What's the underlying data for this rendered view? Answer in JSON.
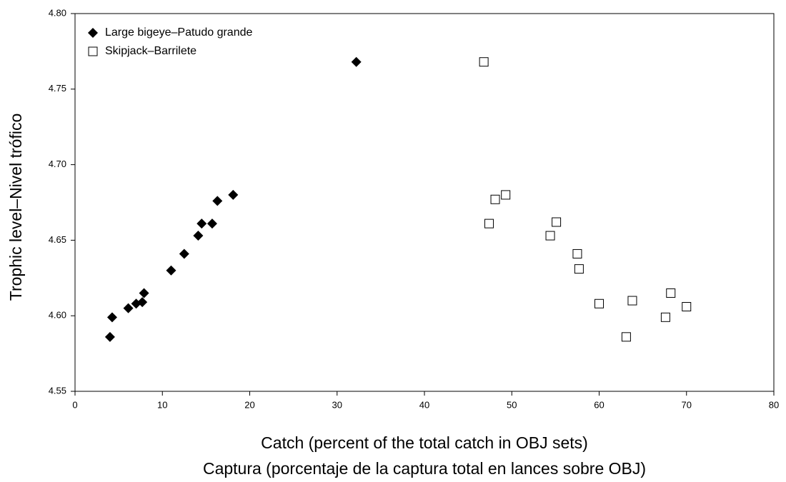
{
  "chart_data": {
    "type": "scatter",
    "x_label": [
      "Catch (percent of the total catch in OBJ sets)",
      "Captura (porcentaje de la captura total en lances sobre OBJ)"
    ],
    "y_label": "Trophic level–Nivel trófico",
    "xlim": [
      0,
      80
    ],
    "xticks": [
      0,
      10,
      20,
      30,
      40,
      50,
      60,
      70,
      80
    ],
    "ylim": [
      4.55,
      4.8
    ],
    "yticks": [
      4.55,
      {
        "value": 4.6,
        "label": "4.60"
      },
      4.65,
      {
        "value": 4.7,
        "label": "4.70"
      },
      4.75,
      {
        "value": 4.8,
        "label": "4.80"
      }
    ],
    "legend_position": "upper-left",
    "series": [
      {
        "name": "Large bigeye–Patudo grande",
        "color": "#000000",
        "marker": "filled-diamond",
        "x": [
          4.0,
          4.25,
          6.1,
          7.0,
          7.7,
          7.9,
          11.0,
          12.5,
          14.1,
          14.5,
          15.7,
          16.3,
          18.1,
          32.2
        ],
        "values": [
          4.586,
          4.599,
          4.605,
          4.608,
          4.609,
          4.615,
          4.63,
          4.641,
          4.653,
          4.661,
          4.661,
          4.676,
          4.68,
          4.768
        ]
      },
      {
        "name": "Skipjack–Barrilete",
        "color": "#000000",
        "marker": "open-square",
        "x": [
          46.8,
          47.4,
          48.1,
          49.3,
          54.4,
          55.1,
          57.5,
          57.7,
          60.0,
          63.8,
          63.1,
          68.2,
          67.6,
          70.0
        ],
        "values": [
          4.768,
          4.661,
          4.677,
          4.68,
          4.653,
          4.662,
          4.641,
          4.631,
          4.608,
          4.61,
          4.586,
          4.615,
          4.599,
          4.606
        ]
      }
    ]
  }
}
